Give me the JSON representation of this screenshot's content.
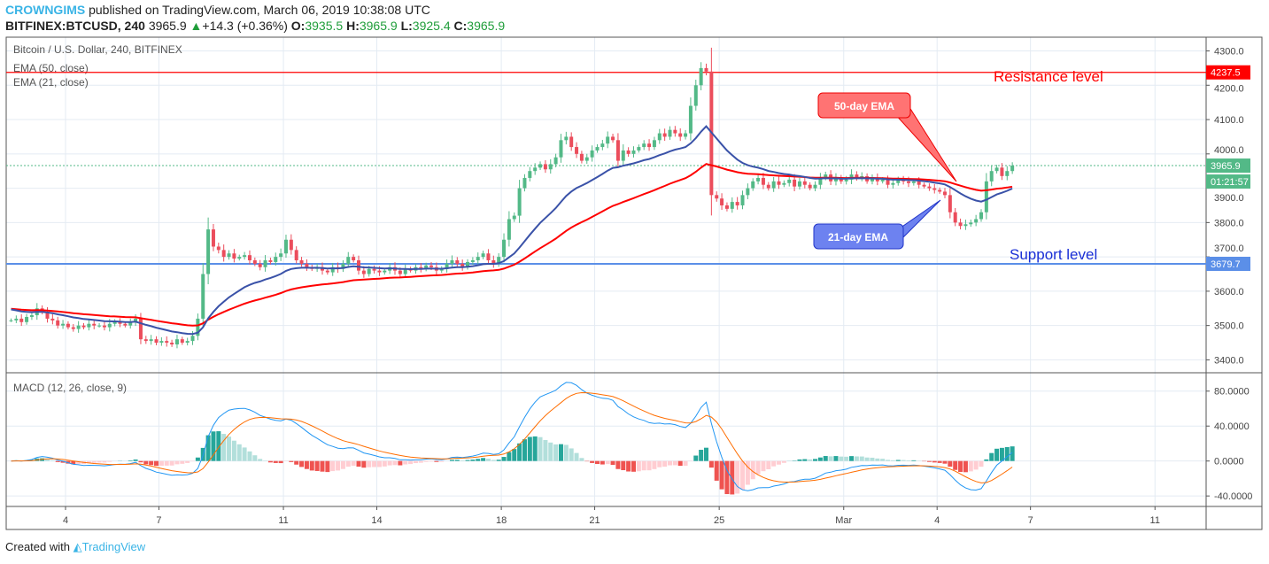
{
  "header": {
    "author": "CROWNGIMS",
    "published": "published on TradingView.com, March 06, 2019 10:38:08 UTC",
    "symbol": "BITFINEX:BTCUSD, 240",
    "price": "3965.9",
    "change": "+14.3 (+0.36%)",
    "o_label": "O:",
    "o": "3935.5",
    "h_label": "H:",
    "h": "3965.9",
    "l_label": "L:",
    "l": "3925.4",
    "c_label": "C:",
    "c": "3965.9"
  },
  "footer": {
    "created": "Created with",
    "brand": "TradingView"
  },
  "chart_data": {
    "type": "candlestick",
    "title": "Bitcoin / U.S. Dollar, 240, BITFINEX",
    "legend": [
      "EMA (50, close)",
      "EMA (21, close)"
    ],
    "macd_label": "MACD (12, 26, close, 9)",
    "start_day_offset": 2.1667,
    "interval_hours": 4,
    "closes": [
      3515,
      3520,
      3510,
      3525,
      3530,
      3550,
      3540,
      3520,
      3515,
      3500,
      3505,
      3495,
      3490,
      3500,
      3495,
      3505,
      3500,
      3500,
      3495,
      3505,
      3510,
      3505,
      3500,
      3510,
      3520,
      3460,
      3455,
      3460,
      3450,
      3455,
      3450,
      3445,
      3460,
      3450,
      3455,
      3470,
      3520,
      3650,
      3780,
      3730,
      3720,
      3700,
      3710,
      3695,
      3700,
      3705,
      3690,
      3680,
      3670,
      3690,
      3685,
      3700,
      3710,
      3750,
      3720,
      3690,
      3680,
      3670,
      3665,
      3670,
      3660,
      3655,
      3670,
      3665,
      3680,
      3700,
      3690,
      3660,
      3650,
      3665,
      3660,
      3655,
      3660,
      3670,
      3660,
      3650,
      3665,
      3660,
      3670,
      3665,
      3675,
      3670,
      3660,
      3665,
      3680,
      3690,
      3680,
      3670,
      3685,
      3690,
      3700,
      3710,
      3690,
      3680,
      3700,
      3750,
      3810,
      3820,
      3900,
      3930,
      3950,
      3960,
      3970,
      3955,
      3970,
      3990,
      4040,
      4050,
      4020,
      4000,
      3980,
      3990,
      4010,
      4020,
      4030,
      4050,
      4040,
      3980,
      4010,
      4000,
      4010,
      4020,
      4030,
      4020,
      4040,
      4060,
      4050,
      4070,
      4060,
      4050,
      4060,
      4140,
      4200,
      4250,
      4240,
      3880,
      3870,
      3850,
      3840,
      3860,
      3850,
      3880,
      3900,
      3920,
      3930,
      3910,
      3900,
      3920,
      3910,
      3915,
      3925,
      3905,
      3920,
      3910,
      3900,
      3910,
      3930,
      3940,
      3920,
      3930,
      3920,
      3925,
      3940,
      3930,
      3935,
      3920,
      3930,
      3920,
      3925,
      3910,
      3915,
      3925,
      3920,
      3915,
      3920,
      3910,
      3905,
      3900,
      3895,
      3890,
      3880,
      3830,
      3800,
      3790,
      3795,
      3800,
      3810,
      3830,
      3920,
      3950,
      3960,
      3935.5,
      3950,
      3965.9
    ],
    "price_ticks": [
      "4300.0",
      "4200.0",
      "4100.0",
      "4000.0",
      "3900.0",
      "3800.0",
      "3700.0",
      "3600.0",
      "3500.0",
      "3400.0"
    ],
    "ylim": [
      3365,
      4340
    ],
    "macd_ticks": [
      "80.0000",
      "40.0000",
      "0.0000",
      "-40.0000"
    ],
    "macd_ylim": [
      -52,
      100
    ],
    "x_ticks": [
      {
        "label": "4",
        "day": 4
      },
      {
        "label": "7",
        "day": 7
      },
      {
        "label": "11",
        "day": 11
      },
      {
        "label": "14",
        "day": 14
      },
      {
        "label": "18",
        "day": 18
      },
      {
        "label": "21",
        "day": 21
      },
      {
        "label": "25",
        "day": 25
      },
      {
        "label": "Mar",
        "day": 29
      },
      {
        "label": "4",
        "day": 32
      },
      {
        "label": "7",
        "day": 35
      },
      {
        "label": "11",
        "day": 39
      }
    ],
    "resistance": {
      "value": 4237.5,
      "label": "4237.5",
      "text": "Resistance level",
      "color": "#ff0000"
    },
    "support": {
      "value": 3679.7,
      "label": "3679.7",
      "text": "Support level",
      "color": "#5b8fe8"
    },
    "last_price": {
      "value": 3965.9,
      "label": "3965.9",
      "countdown": "01:21:57",
      "color": "#53b987"
    },
    "callouts": [
      {
        "text": "50-day EMA",
        "color": "#ff7373"
      },
      {
        "text": "21-day EMA",
        "color": "#6d82f0"
      }
    ],
    "colors": {
      "up": "#53b987",
      "down": "#eb4d5c",
      "ema50": "#ff0000",
      "ema21": "#3a52a8",
      "macd": "#2196f3",
      "signal": "#ff6d00"
    }
  }
}
